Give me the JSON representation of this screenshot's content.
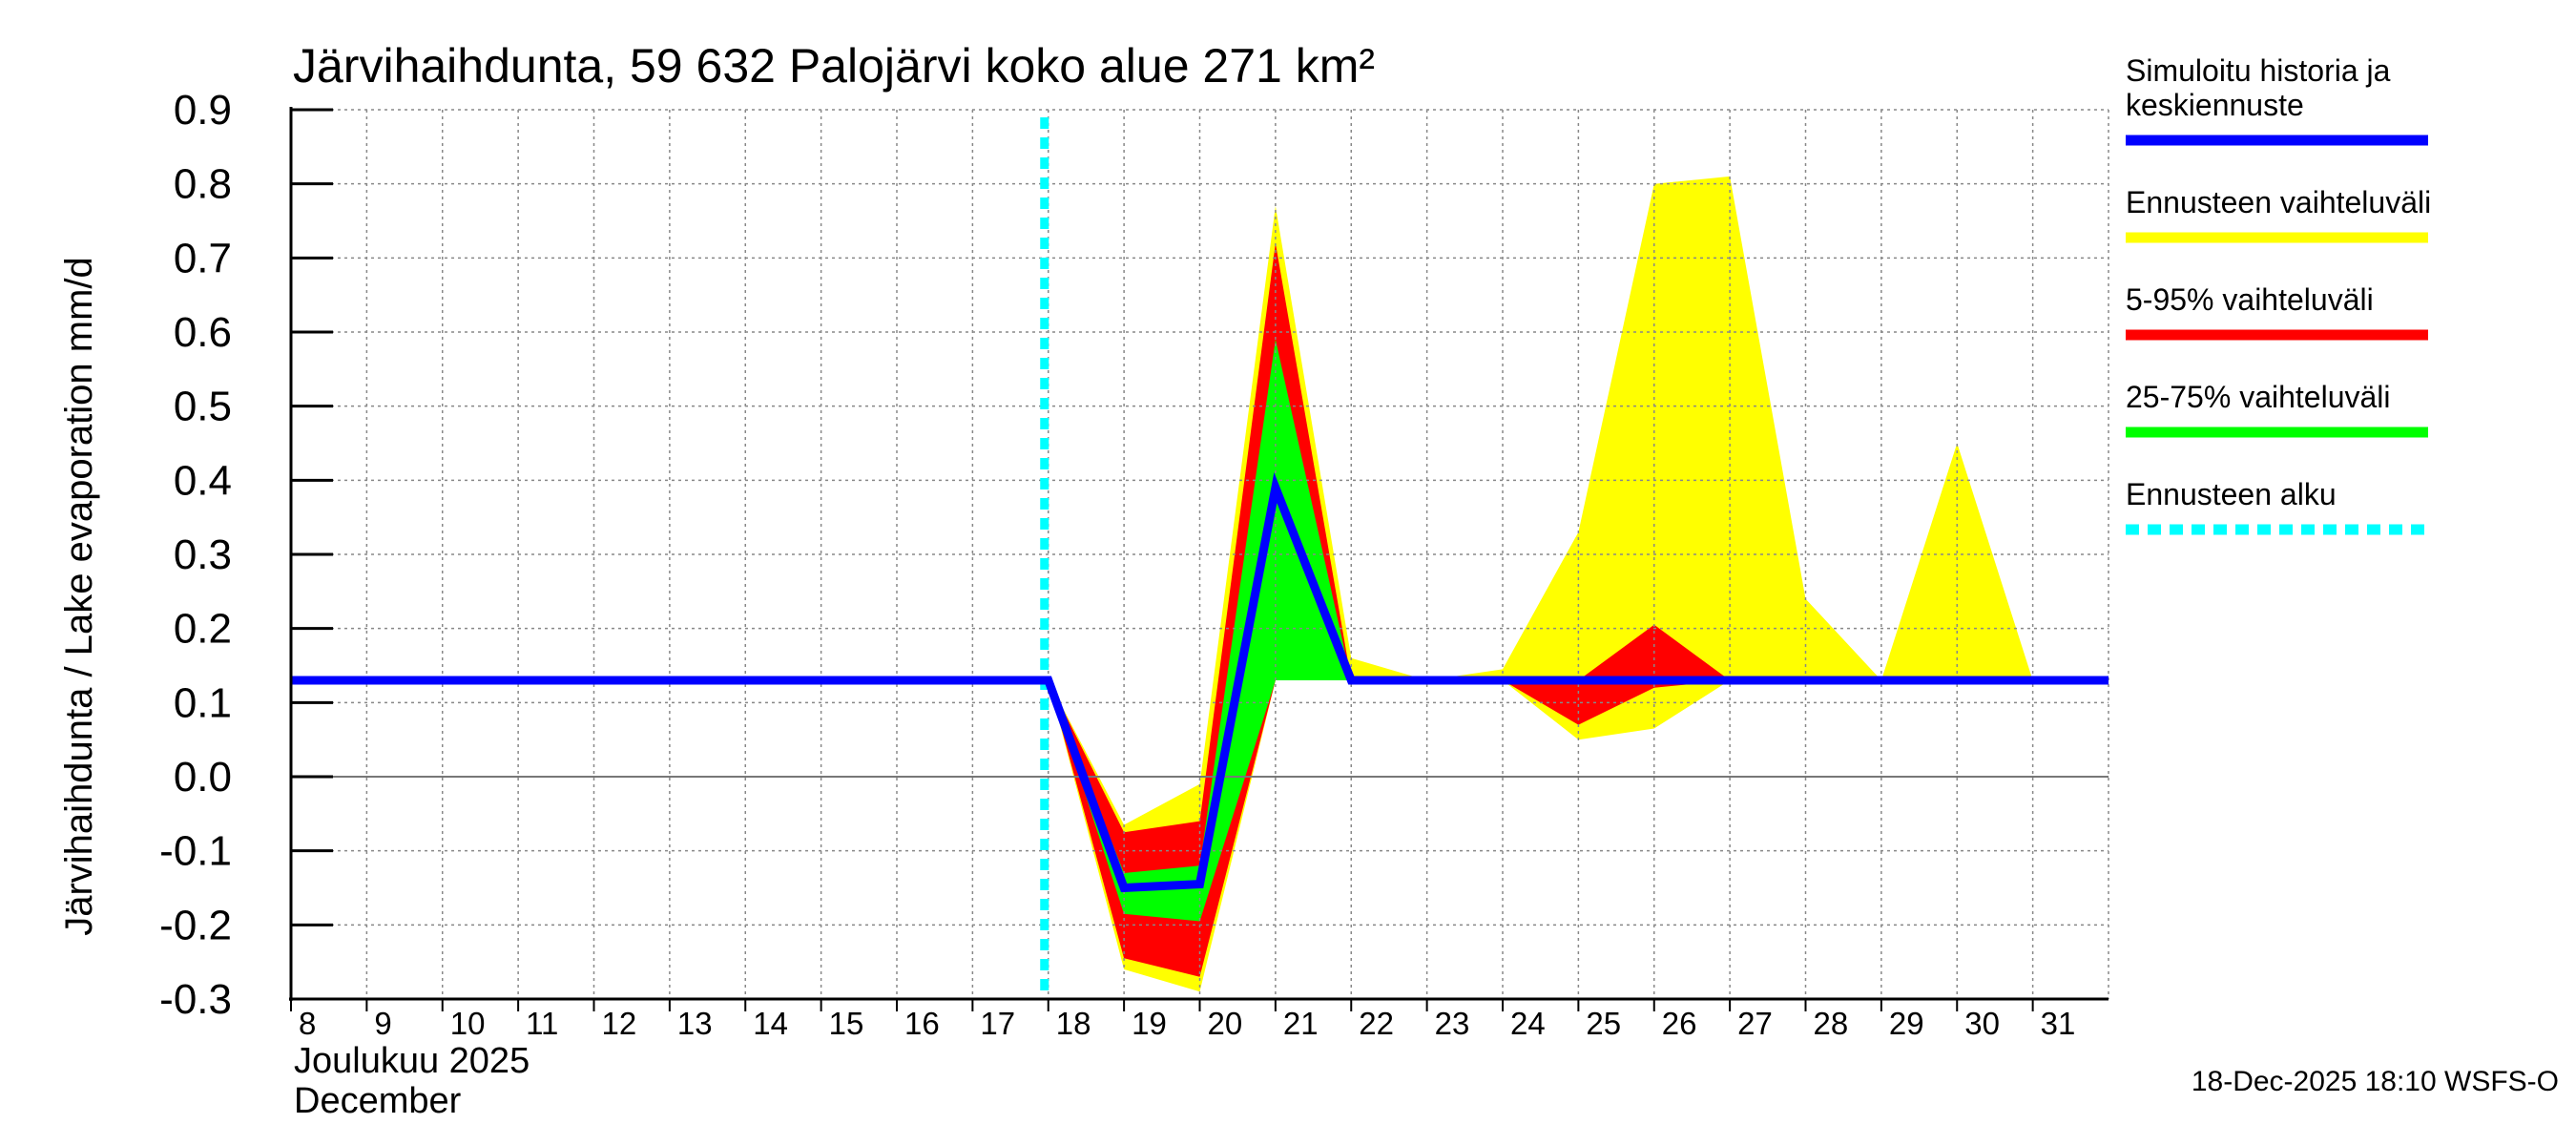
{
  "chart_data": {
    "type": "area",
    "title": "Järvihaihdunta, 59 632 Palojärvi koko alue 271 km²",
    "ylabel": "Järvihaihdunta / Lake evaporation   mm/d",
    "xlabel_line1": "Joulukuu  2025",
    "xlabel_line2": "December",
    "ylim": [
      -0.3,
      0.9
    ],
    "xlim": [
      8,
      32
    ],
    "yticks": [
      -0.3,
      -0.2,
      -0.1,
      0.0,
      0.1,
      0.2,
      0.3,
      0.4,
      0.5,
      0.6,
      0.7,
      0.8,
      0.9
    ],
    "ytick_labels": [
      "-0.3",
      "-0.2",
      "-0.1",
      "0.0",
      "0.1",
      "0.2",
      "0.3",
      "0.4",
      "0.5",
      "0.6",
      "0.7",
      "0.8",
      "0.9"
    ],
    "xticks": [
      8,
      9,
      10,
      11,
      12,
      13,
      14,
      15,
      16,
      17,
      18,
      19,
      20,
      21,
      22,
      23,
      24,
      25,
      26,
      27,
      28,
      29,
      30,
      31
    ],
    "xtick_labels": [
      "8",
      "9",
      "10",
      "11",
      "12",
      "13",
      "14",
      "15",
      "16",
      "17",
      "18",
      "19",
      "20",
      "21",
      "22",
      "23",
      "24",
      "25",
      "26",
      "27",
      "28",
      "29",
      "30",
      "31"
    ],
    "grid": true,
    "forecast_start": 18,
    "series": [
      {
        "name": "Simuloitu historia ja keskiennuste",
        "kind": "line",
        "color": "#0000ff",
        "x": [
          8,
          18,
          19,
          20,
          21,
          22,
          32
        ],
        "values": [
          0.13,
          0.13,
          -0.15,
          -0.145,
          0.39,
          0.13,
          0.13
        ]
      },
      {
        "name": "Ennusteen vaihteluväli",
        "kind": "band",
        "color": "#ffff00",
        "x": [
          18,
          19,
          20,
          21,
          22,
          23,
          24,
          25,
          26,
          27,
          28,
          29,
          30,
          31
        ],
        "lower": [
          0.13,
          -0.26,
          -0.29,
          0.13,
          0.13,
          0.13,
          0.13,
          0.05,
          0.065,
          0.13,
          0.13,
          0.13,
          0.13,
          0.13
        ],
        "upper": [
          0.13,
          -0.065,
          -0.01,
          0.77,
          0.16,
          0.13,
          0.145,
          0.33,
          0.8,
          0.81,
          0.24,
          0.13,
          0.45,
          0.13
        ]
      },
      {
        "name": "5-95% vaihteluväli",
        "kind": "band",
        "color": "#ff0000",
        "x": [
          18,
          19,
          20,
          21,
          22,
          23,
          24,
          25,
          26,
          27,
          28
        ],
        "lower": [
          0.13,
          -0.245,
          -0.27,
          0.13,
          0.13,
          0.13,
          0.13,
          0.07,
          0.12,
          0.13,
          0.13
        ],
        "upper": [
          0.13,
          -0.075,
          -0.06,
          0.72,
          0.13,
          0.13,
          0.13,
          0.13,
          0.205,
          0.13,
          0.13
        ]
      },
      {
        "name": "25-75% vaihteluväli",
        "kind": "band",
        "color": "#00ff00",
        "x": [
          18,
          19,
          20,
          21,
          22
        ],
        "lower": [
          0.13,
          -0.185,
          -0.195,
          0.13,
          0.13
        ],
        "upper": [
          0.13,
          -0.13,
          -0.12,
          0.59,
          0.13
        ]
      }
    ],
    "legend": [
      {
        "label_lines": [
          "Simuloitu historia ja",
          "keskiennuste"
        ],
        "color": "#0000ff",
        "style": "solid"
      },
      {
        "label_lines": [
          "Ennusteen vaihteluväli"
        ],
        "color": "#ffff00",
        "style": "solid"
      },
      {
        "label_lines": [
          "5-95% vaihteluväli"
        ],
        "color": "#ff0000",
        "style": "solid"
      },
      {
        "label_lines": [
          "25-75% vaihteluväli"
        ],
        "color": "#00ff00",
        "style": "solid"
      },
      {
        "label_lines": [
          "Ennusteen alku"
        ],
        "color": "#00ffff",
        "style": "dotted"
      }
    ],
    "legend_position": "right",
    "timestamp": "18-Dec-2025 18:10 WSFS-O"
  }
}
